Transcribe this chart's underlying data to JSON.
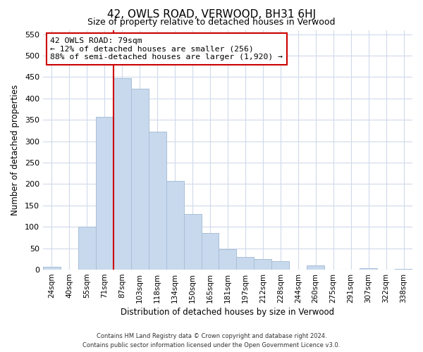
{
  "title": "42, OWLS ROAD, VERWOOD, BH31 6HJ",
  "subtitle": "Size of property relative to detached houses in Verwood",
  "xlabel": "Distribution of detached houses by size in Verwood",
  "ylabel": "Number of detached properties",
  "bar_labels": [
    "24sqm",
    "40sqm",
    "55sqm",
    "71sqm",
    "87sqm",
    "103sqm",
    "118sqm",
    "134sqm",
    "150sqm",
    "165sqm",
    "181sqm",
    "197sqm",
    "212sqm",
    "228sqm",
    "244sqm",
    "260sqm",
    "275sqm",
    "291sqm",
    "307sqm",
    "322sqm",
    "338sqm"
  ],
  "bar_values": [
    7,
    0,
    100,
    357,
    447,
    423,
    323,
    208,
    130,
    86,
    48,
    29,
    25,
    20,
    0,
    10,
    0,
    0,
    3,
    0,
    2
  ],
  "bar_color": "#c8d9ed",
  "bar_edge_color": "#a8bfd8",
  "vline_color": "#cc0000",
  "annotation_line1": "42 OWLS ROAD: 79sqm",
  "annotation_line2": "← 12% of detached houses are smaller (256)",
  "annotation_line3": "88% of semi-detached houses are larger (1,920) →",
  "annotation_box_color": "#ffffff",
  "annotation_box_edge": "#cc0000",
  "ylim": [
    0,
    560
  ],
  "yticks": [
    0,
    50,
    100,
    150,
    200,
    250,
    300,
    350,
    400,
    450,
    500,
    550
  ],
  "footer_line1": "Contains HM Land Registry data © Crown copyright and database right 2024.",
  "footer_line2": "Contains public sector information licensed under the Open Government Licence v3.0.",
  "bg_color": "#ffffff",
  "grid_color": "#d0daea"
}
